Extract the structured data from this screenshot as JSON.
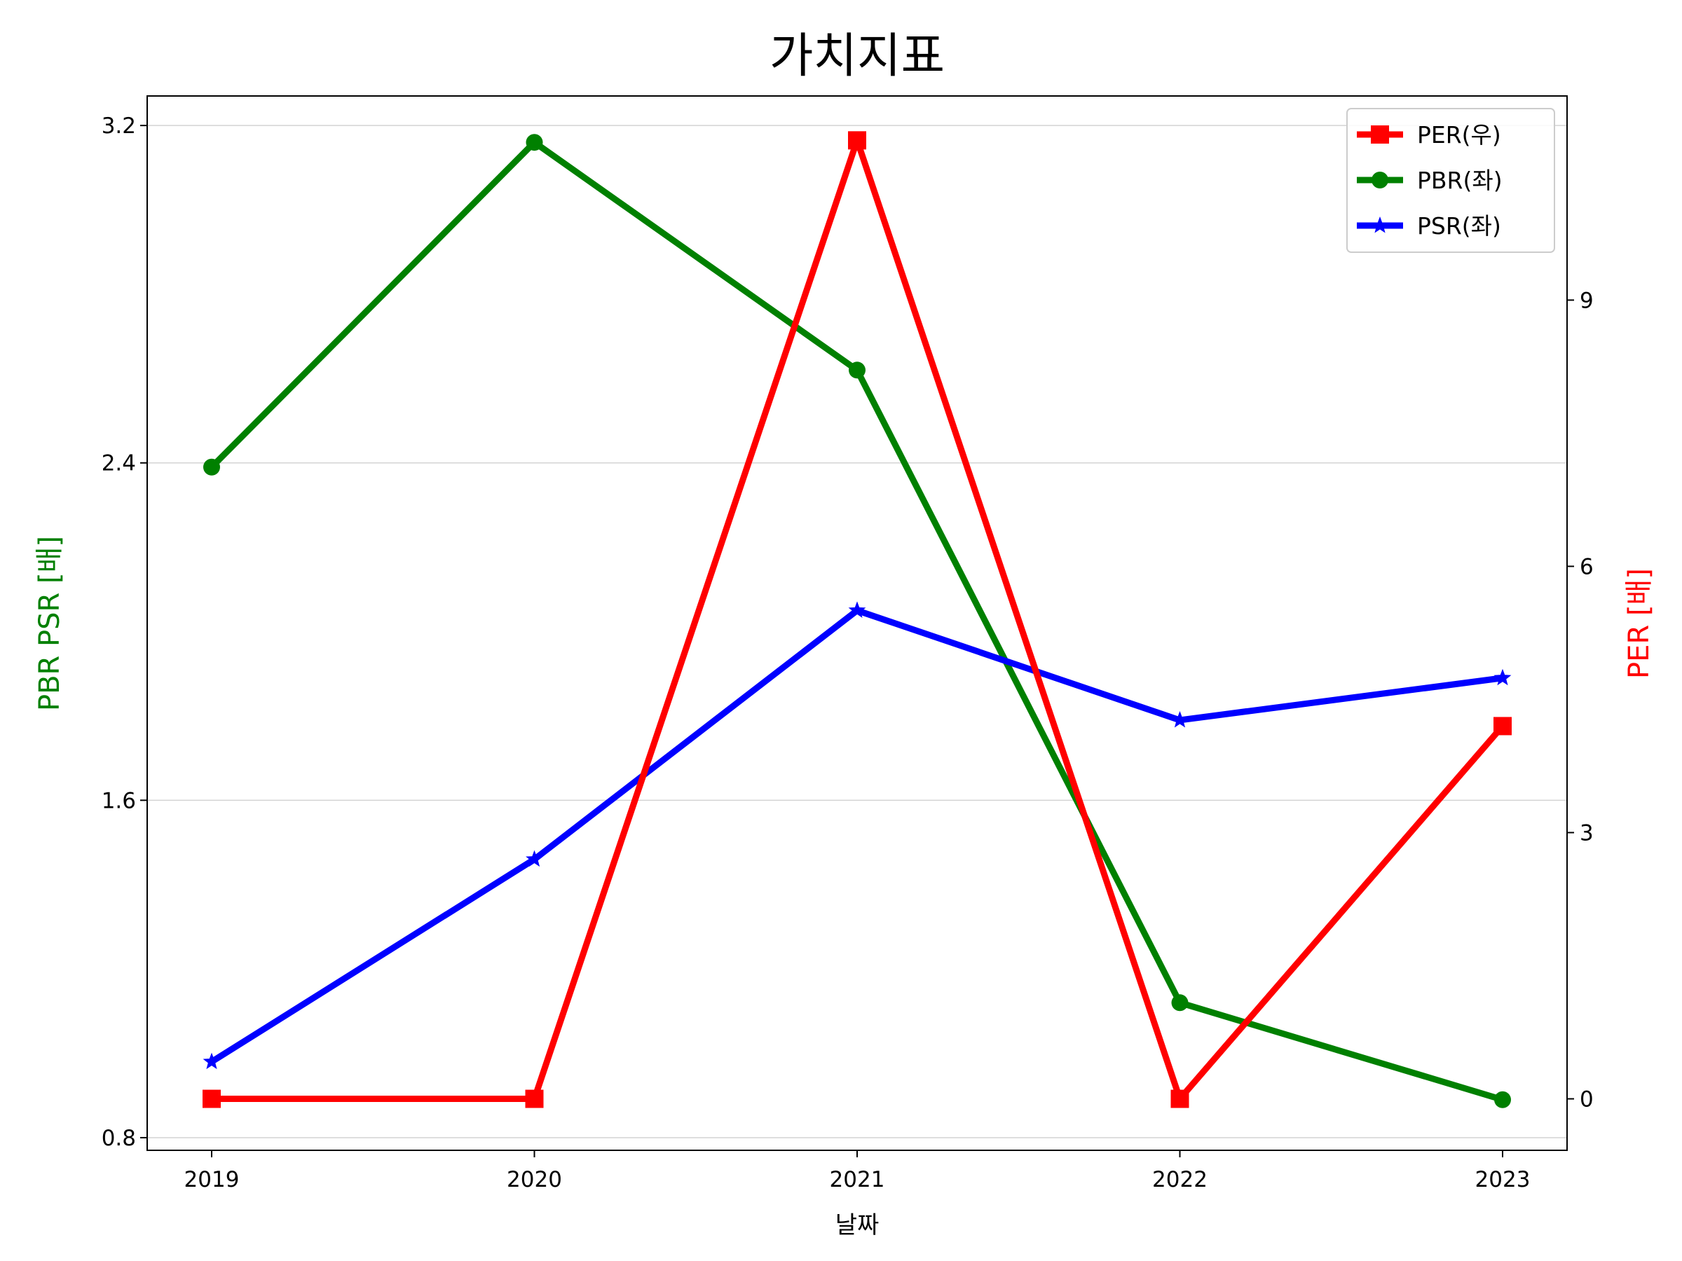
{
  "chart_data": {
    "type": "line",
    "title": "가치지표",
    "xlabel": "날짜",
    "ylabel_left": "PBR PSR [배]",
    "ylabel_right": "PER [배]",
    "categories": [
      "2019",
      "2020",
      "2021",
      "2022",
      "2023"
    ],
    "y_left": {
      "ylim": [
        0.77,
        3.27
      ],
      "ticks": [
        0.8,
        1.6,
        2.4,
        3.2
      ],
      "tick_labels": [
        "0.8",
        "1.6",
        "2.4",
        "3.2"
      ],
      "color": "#008000"
    },
    "y_right": {
      "ylim": [
        -0.58,
        11.3
      ],
      "ticks": [
        0,
        3,
        6,
        9
      ],
      "tick_labels": [
        "0",
        "3",
        "6",
        "9"
      ],
      "color": "#ff0000"
    },
    "grid": "horizontal (left axis)",
    "legend": "top-right",
    "series": [
      {
        "name": "PER(우)",
        "axis": "right",
        "color": "#ff0000",
        "marker": "square",
        "values": [
          0,
          0,
          10.8,
          0,
          4.2
        ]
      },
      {
        "name": "PBR(좌)",
        "axis": "left",
        "color": "#008000",
        "marker": "circle",
        "values": [
          2.39,
          3.16,
          2.62,
          1.12,
          0.89
        ]
      },
      {
        "name": "PSR(좌)",
        "axis": "left",
        "color": "#0000ff",
        "marker": "star",
        "values": [
          0.98,
          1.46,
          2.05,
          1.79,
          1.89
        ]
      }
    ]
  }
}
